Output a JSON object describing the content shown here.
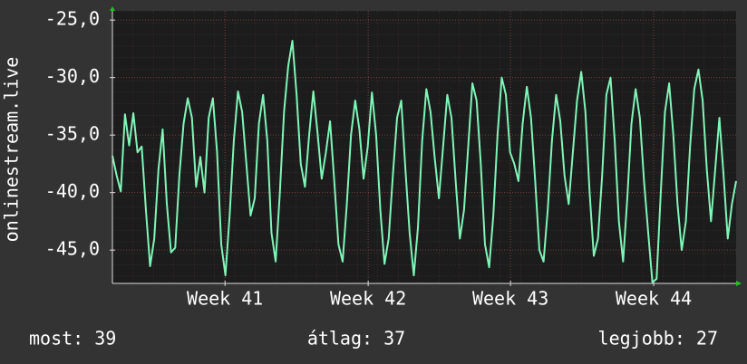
{
  "chart_data": {
    "type": "line",
    "y_label": "onlinestream.live",
    "annotations": [
      "most: 39",
      "átlag: 37",
      "legjobb: 27"
    ],
    "series": [
      {
        "name": "onlinestream.live",
        "color": "#7ff5b8",
        "values": [
          -36.8,
          -38.5,
          -39.9,
          -33.2,
          -35.9,
          -33.1,
          -36.5,
          -36.0,
          -41.5,
          -46.4,
          -44.0,
          -38.0,
          -34.5,
          -41.0,
          -45.2,
          -44.8,
          -38.5,
          -34.0,
          -31.8,
          -33.5,
          -39.5,
          -36.9,
          -40.0,
          -33.5,
          -31.8,
          -36.5,
          -44.5,
          -47.2,
          -42.0,
          -35.5,
          -31.2,
          -33.0,
          -37.5,
          -42.0,
          -40.5,
          -34.0,
          -31.5,
          -35.5,
          -43.5,
          -46.0,
          -40.0,
          -33.0,
          -29.0,
          -26.8,
          -31.5,
          -37.5,
          -39.5,
          -35.0,
          -31.2,
          -34.8,
          -38.8,
          -36.5,
          -33.8,
          -39.0,
          -44.5,
          -46.0,
          -41.0,
          -35.0,
          -32.0,
          -34.5,
          -38.8,
          -36.0,
          -31.3,
          -35.0,
          -41.5,
          -46.2,
          -44.0,
          -38.5,
          -33.5,
          -32.0,
          -38.0,
          -43.5,
          -47.2,
          -43.0,
          -35.5,
          -31.0,
          -33.0,
          -37.0,
          -40.5,
          -36.0,
          -31.5,
          -33.5,
          -39.0,
          -44.0,
          -41.5,
          -36.0,
          -30.5,
          -32.0,
          -37.5,
          -44.5,
          -46.5,
          -42.0,
          -35.0,
          -30.0,
          -31.5,
          -36.5,
          -37.5,
          -39.0,
          -34.0,
          -30.8,
          -33.5,
          -39.0,
          -45.0,
          -46.0,
          -41.5,
          -35.5,
          -31.5,
          -33.8,
          -38.5,
          -41.0,
          -36.5,
          -32.0,
          -29.5,
          -33.0,
          -40.0,
          -45.5,
          -44.0,
          -38.5,
          -31.5,
          -30.0,
          -35.5,
          -42.5,
          -46.0,
          -40.5,
          -34.0,
          -31.0,
          -33.5,
          -39.0,
          -43.5,
          -47.8,
          -47.5,
          -40.0,
          -33.0,
          -30.5,
          -35.0,
          -41.0,
          -45.0,
          -42.5,
          -36.0,
          -31.0,
          -29.3,
          -32.0,
          -38.0,
          -42.5,
          -38.0,
          -33.5,
          -38.5,
          -44.0,
          -41.0,
          -39.0
        ]
      }
    ],
    "xlim": [
      0,
      149
    ],
    "xticks": [
      {
        "value": 26.9,
        "label": "Week 41"
      },
      {
        "value": 61.1,
        "label": "Week 42"
      },
      {
        "value": 95.1,
        "label": "Week 43"
      },
      {
        "value": 129.3,
        "label": "Week 44"
      }
    ],
    "ylim": [
      -47.9,
      -24.2
    ],
    "yticks": [
      {
        "value": -45,
        "label": "-45,0"
      },
      {
        "value": -40,
        "label": "-40,0"
      },
      {
        "value": -35,
        "label": "-35,0"
      },
      {
        "value": -30,
        "label": "-30,0"
      },
      {
        "value": -25,
        "label": "-25,0"
      }
    ],
    "grid": true
  }
}
